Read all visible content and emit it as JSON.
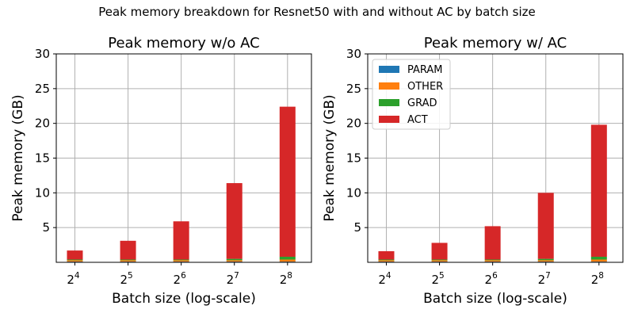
{
  "figure": {
    "suptitle": "Peak memory breakdown for Resnet50 with and without AC by batch size"
  },
  "colors": {
    "PARAM": "#1f77b4",
    "OTHER": "#ff7f0e",
    "GRAD": "#2ca02c",
    "ACT": "#d62728"
  },
  "chart_data": [
    {
      "type": "bar",
      "stacked": true,
      "title": "Peak memory w/o AC",
      "xlabel": "Batch size (log-scale)",
      "ylabel": "Peak memory (GB)",
      "xscale": "log2",
      "x_tick_bases": [
        "2",
        "2",
        "2",
        "2",
        "2"
      ],
      "x_tick_exponents": [
        "4",
        "5",
        "6",
        "7",
        "8"
      ],
      "x": [
        16,
        32,
        64,
        128,
        256
      ],
      "ylim": [
        0,
        30
      ],
      "yticks": [
        "5",
        "10",
        "15",
        "20",
        "25",
        "30"
      ],
      "ytick_values": [
        5,
        10,
        15,
        20,
        25,
        30
      ],
      "grid": true,
      "legend": null,
      "series": [
        {
          "name": "PARAM",
          "values": [
            0.1,
            0.1,
            0.1,
            0.1,
            0.1
          ]
        },
        {
          "name": "OTHER",
          "values": [
            0.2,
            0.2,
            0.2,
            0.2,
            0.3
          ]
        },
        {
          "name": "GRAD",
          "values": [
            0.1,
            0.1,
            0.1,
            0.2,
            0.4
          ]
        },
        {
          "name": "ACT",
          "values": [
            1.3,
            2.7,
            5.5,
            10.9,
            21.6
          ]
        }
      ]
    },
    {
      "type": "bar",
      "stacked": true,
      "title": "Peak memory w/ AC",
      "xlabel": "Batch size (log-scale)",
      "ylabel": "Peak memory (GB)",
      "xscale": "log2",
      "x_tick_bases": [
        "2",
        "2",
        "2",
        "2",
        "2"
      ],
      "x_tick_exponents": [
        "4",
        "5",
        "6",
        "7",
        "8"
      ],
      "x": [
        16,
        32,
        64,
        128,
        256
      ],
      "ylim": [
        0,
        30
      ],
      "yticks": [
        "5",
        "10",
        "15",
        "20",
        "25",
        "30"
      ],
      "ytick_values": [
        5,
        10,
        15,
        20,
        25,
        30
      ],
      "grid": true,
      "legend": "top-left",
      "series": [
        {
          "name": "PARAM",
          "values": [
            0.1,
            0.1,
            0.1,
            0.1,
            0.1
          ]
        },
        {
          "name": "OTHER",
          "values": [
            0.2,
            0.2,
            0.2,
            0.2,
            0.3
          ]
        },
        {
          "name": "GRAD",
          "values": [
            0.1,
            0.1,
            0.1,
            0.2,
            0.4
          ]
        },
        {
          "name": "ACT",
          "values": [
            1.2,
            2.4,
            4.8,
            9.5,
            19.0
          ]
        }
      ]
    }
  ]
}
